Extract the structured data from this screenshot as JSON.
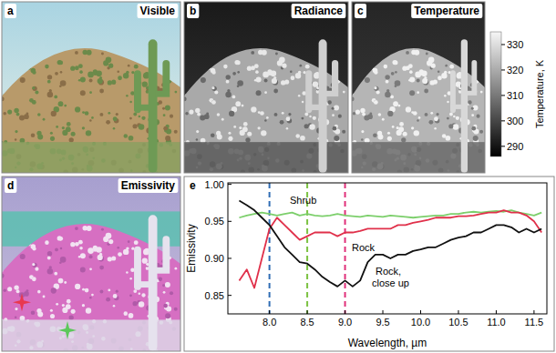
{
  "panels": [
    {
      "letter": "a",
      "title": "Visible"
    },
    {
      "letter": "b",
      "title": "Radiance"
    },
    {
      "letter": "c",
      "title": "Temperature"
    },
    {
      "letter": "d",
      "title": "Emissivity"
    },
    {
      "letter": "e"
    }
  ],
  "colorbar": {
    "label": "Temperature, K",
    "range": [
      286,
      335
    ],
    "ticks": [
      290,
      300,
      310,
      320,
      330
    ]
  },
  "chart_data": {
    "type": "line",
    "x_label": "Wavelength, µm",
    "y_label": "Emissivity",
    "x": [
      7.6,
      7.7,
      7.8,
      7.9,
      8.0,
      8.1,
      8.2,
      8.3,
      8.4,
      8.5,
      8.6,
      8.7,
      8.8,
      8.9,
      9.0,
      9.1,
      9.2,
      9.3,
      9.4,
      9.5,
      9.6,
      9.7,
      9.8,
      9.9,
      10.0,
      10.1,
      10.2,
      10.3,
      10.4,
      10.5,
      10.6,
      10.7,
      10.8,
      10.9,
      11.0,
      11.1,
      11.2,
      11.3,
      11.4,
      11.5,
      11.6
    ],
    "xlim": [
      7.45,
      11.67
    ],
    "ylim": [
      0.825,
      1.002
    ],
    "xticks": [
      {
        "value": 8,
        "label": "8.0"
      },
      8.5,
      {
        "value": 9,
        "label": "9.0"
      },
      9.5,
      {
        "value": 10,
        "label": "10.0"
      },
      10.5,
      {
        "value": 11,
        "label": "11.0"
      },
      11.5
    ],
    "yticks": [
      0.85,
      {
        "value": 0.9,
        "label": "0.90"
      },
      0.95,
      {
        "value": 1,
        "label": "1.00"
      }
    ],
    "series": [
      {
        "name": "Shrub",
        "color": "#7ccf6b",
        "values": [
          0.955,
          0.958,
          0.96,
          0.962,
          0.96,
          0.958,
          0.96,
          0.962,
          0.958,
          0.96,
          0.958,
          0.957,
          0.958,
          0.96,
          0.958,
          0.957,
          0.956,
          0.958,
          0.957,
          0.956,
          0.958,
          0.957,
          0.956,
          0.955,
          0.956,
          0.957,
          0.958,
          0.958,
          0.96,
          0.96,
          0.962,
          0.963,
          0.962,
          0.963,
          0.964,
          0.963,
          0.965,
          0.962,
          0.96,
          0.958,
          0.962
        ]
      },
      {
        "name": "Rock",
        "color": "#e0304a",
        "values": [
          0.87,
          0.885,
          0.86,
          0.9,
          0.94,
          0.955,
          0.945,
          0.935,
          0.925,
          0.93,
          0.935,
          0.935,
          0.935,
          0.93,
          0.935,
          0.935,
          0.937,
          0.94,
          0.94,
          0.94,
          0.94,
          0.945,
          0.945,
          0.948,
          0.95,
          0.952,
          0.955,
          0.955,
          0.955,
          0.957,
          0.957,
          0.958,
          0.96,
          0.962,
          0.962,
          0.965,
          0.962,
          0.962,
          0.958,
          0.95,
          0.935
        ]
      },
      {
        "name": "Rock, close up",
        "color": "#111111",
        "values": [
          0.978,
          0.972,
          0.965,
          0.955,
          0.945,
          0.93,
          0.915,
          0.905,
          0.895,
          0.893,
          0.885,
          0.875,
          0.868,
          0.862,
          0.87,
          0.862,
          0.87,
          0.895,
          0.905,
          0.905,
          0.9,
          0.905,
          0.905,
          0.91,
          0.912,
          0.915,
          0.915,
          0.92,
          0.925,
          0.928,
          0.93,
          0.935,
          0.935,
          0.94,
          0.945,
          0.945,
          0.942,
          0.935,
          0.94,
          0.935,
          0.94
        ]
      }
    ],
    "reference_lines": [
      {
        "x": 8.0,
        "color": "#2f6db5",
        "line_style": "dashed"
      },
      {
        "x": 8.5,
        "color": "#7cc242",
        "line_style": "dashed"
      },
      {
        "x": 9.0,
        "color": "#e0307a",
        "line_style": "dashed"
      }
    ]
  }
}
